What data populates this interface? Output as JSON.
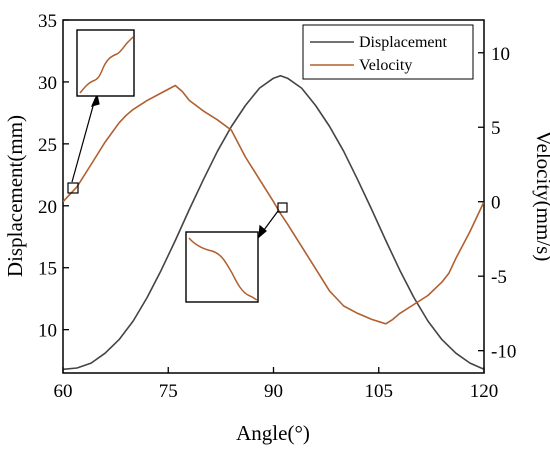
{
  "chart_data": {
    "type": "line",
    "xlabel": "Angle(°)",
    "ylabel_left": "Displacement(mm)",
    "ylabel_right": "Velocity(mm/s)",
    "xlim": [
      60,
      120
    ],
    "ylim_left": [
      6.5,
      35
    ],
    "ylim_right": [
      -11.5,
      12.2
    ],
    "x_ticks": [
      60,
      75,
      90,
      105,
      120
    ],
    "y_left_ticks": [
      10,
      15,
      20,
      25,
      30,
      35
    ],
    "y_right_ticks": [
      -10,
      -5,
      0,
      5,
      10
    ],
    "legend_position": "top-right",
    "grid": false,
    "series": [
      {
        "name": "Displacement",
        "axis": "left",
        "color": "#444444",
        "x": [
          60,
          62,
          64,
          66,
          68,
          70,
          72,
          74,
          76,
          78,
          80,
          82,
          84,
          86,
          88,
          90,
          91,
          92,
          94,
          96,
          98,
          100,
          102,
          104,
          106,
          108,
          110,
          112,
          114,
          116,
          118,
          120
        ],
        "y": [
          6.8,
          6.9,
          7.3,
          8.1,
          9.2,
          10.7,
          12.6,
          14.8,
          17.2,
          19.7,
          22.1,
          24.4,
          26.4,
          28.1,
          29.5,
          30.3,
          30.5,
          30.3,
          29.5,
          28.1,
          26.4,
          24.4,
          22.1,
          19.7,
          17.2,
          14.8,
          12.6,
          10.7,
          9.2,
          8.1,
          7.3,
          6.8
        ]
      },
      {
        "name": "Velocity",
        "axis": "right",
        "color": "#b06030",
        "x": [
          60,
          62,
          64,
          66,
          68,
          69,
          70,
          72,
          74,
          76,
          77,
          78,
          80,
          82,
          84,
          86,
          88,
          90,
          91,
          92,
          94,
          96,
          98,
          99,
          100,
          102,
          104,
          106,
          107,
          108,
          110,
          112,
          114,
          115,
          116,
          118,
          120
        ],
        "y": [
          0,
          1,
          2.5,
          4,
          5.3,
          5.8,
          6.2,
          6.8,
          7.3,
          7.8,
          7.4,
          6.8,
          6.1,
          5.5,
          4.8,
          3,
          1.5,
          0,
          -0.8,
          -1.5,
          -3,
          -4.5,
          -6,
          -6.5,
          -7,
          -7.5,
          -7.9,
          -8.2,
          -7.9,
          -7.5,
          -6.9,
          -6.3,
          -5.4,
          -4.8,
          -3.8,
          -2,
          0
        ]
      }
    ]
  }
}
